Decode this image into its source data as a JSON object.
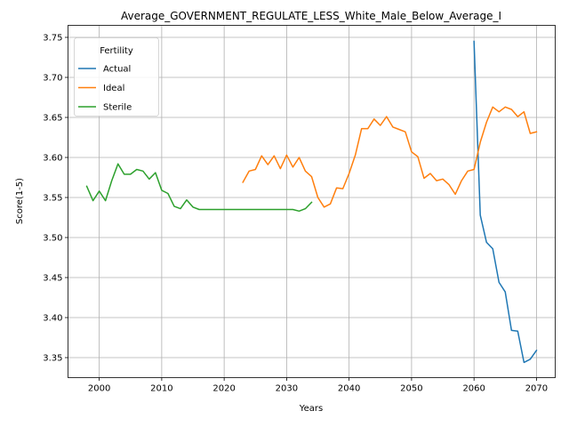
{
  "chart_data": {
    "type": "line",
    "title": "Average_GOVERNMENT_REGULATE_LESS_White_Male_Below_Average_I",
    "xlabel": "Years",
    "ylabel": "Score(1-5)",
    "xlim": [
      1995,
      2073
    ],
    "ylim": [
      3.325,
      3.765
    ],
    "x_ticks": [
      2000,
      2010,
      2020,
      2030,
      2040,
      2050,
      2060,
      2070
    ],
    "y_ticks": [
      3.35,
      3.4,
      3.45,
      3.5,
      3.55,
      3.6,
      3.65,
      3.7,
      3.75
    ],
    "x_tick_labels": [
      "2000",
      "2010",
      "2020",
      "2030",
      "2040",
      "2050",
      "2060",
      "2070"
    ],
    "y_tick_labels": [
      "3.35",
      "3.40",
      "3.45",
      "3.50",
      "3.55",
      "3.60",
      "3.65",
      "3.70",
      "3.75"
    ],
    "grid": true,
    "legend": {
      "title": "Fertility",
      "placement": "top-left"
    },
    "series": [
      {
        "name": "Actual",
        "color": "#1f77b4",
        "x": [
          2060,
          2061,
          2062,
          2063,
          2064,
          2065,
          2066,
          2067,
          2068,
          2069,
          2070
        ],
        "y": [
          3.745,
          3.528,
          3.494,
          3.486,
          3.444,
          3.432,
          3.384,
          3.383,
          3.344,
          3.348,
          3.359
        ]
      },
      {
        "name": "Ideal",
        "color": "#ff7f0e",
        "x": [
          2023,
          2024,
          2025,
          2026,
          2027,
          2028,
          2029,
          2030,
          2031,
          2032,
          2033,
          2034,
          2035,
          2036,
          2037,
          2038,
          2039,
          2040,
          2041,
          2042,
          2043,
          2044,
          2045,
          2046,
          2047,
          2048,
          2049,
          2050,
          2051,
          2052,
          2053,
          2054,
          2055,
          2056,
          2057,
          2058,
          2059,
          2060,
          2061,
          2062,
          2063,
          2064,
          2065,
          2066,
          2067,
          2068,
          2069,
          2070
        ],
        "y": [
          3.569,
          3.583,
          3.585,
          3.602,
          3.591,
          3.602,
          3.586,
          3.603,
          3.588,
          3.6,
          3.583,
          3.576,
          3.55,
          3.538,
          3.542,
          3.562,
          3.561,
          3.58,
          3.603,
          3.636,
          3.636,
          3.648,
          3.64,
          3.651,
          3.638,
          3.635,
          3.632,
          3.607,
          3.601,
          3.574,
          3.58,
          3.571,
          3.573,
          3.566,
          3.554,
          3.571,
          3.583,
          3.585,
          3.619,
          3.644,
          3.663,
          3.657,
          3.663,
          3.66,
          3.651,
          3.657,
          3.63,
          3.632
        ]
      },
      {
        "name": "Sterile",
        "color": "#2ca02c",
        "x": [
          1998,
          1999,
          2000,
          2001,
          2002,
          2003,
          2004,
          2005,
          2006,
          2007,
          2008,
          2009,
          2010,
          2011,
          2012,
          2013,
          2014,
          2015,
          2016,
          2017,
          2018,
          2019,
          2020,
          2021,
          2022,
          2023,
          2024,
          2025,
          2026,
          2027,
          2028,
          2029,
          2030,
          2031,
          2032,
          2033,
          2034
        ],
        "y": [
          3.564,
          3.546,
          3.558,
          3.546,
          3.571,
          3.592,
          3.579,
          3.579,
          3.585,
          3.583,
          3.573,
          3.581,
          3.559,
          3.555,
          3.539,
          3.536,
          3.547,
          3.538,
          3.535,
          3.535,
          3.535,
          3.535,
          3.535,
          3.535,
          3.535,
          3.535,
          3.535,
          3.535,
          3.535,
          3.535,
          3.535,
          3.535,
          3.535,
          3.535,
          3.533,
          3.536,
          3.544
        ]
      }
    ]
  }
}
